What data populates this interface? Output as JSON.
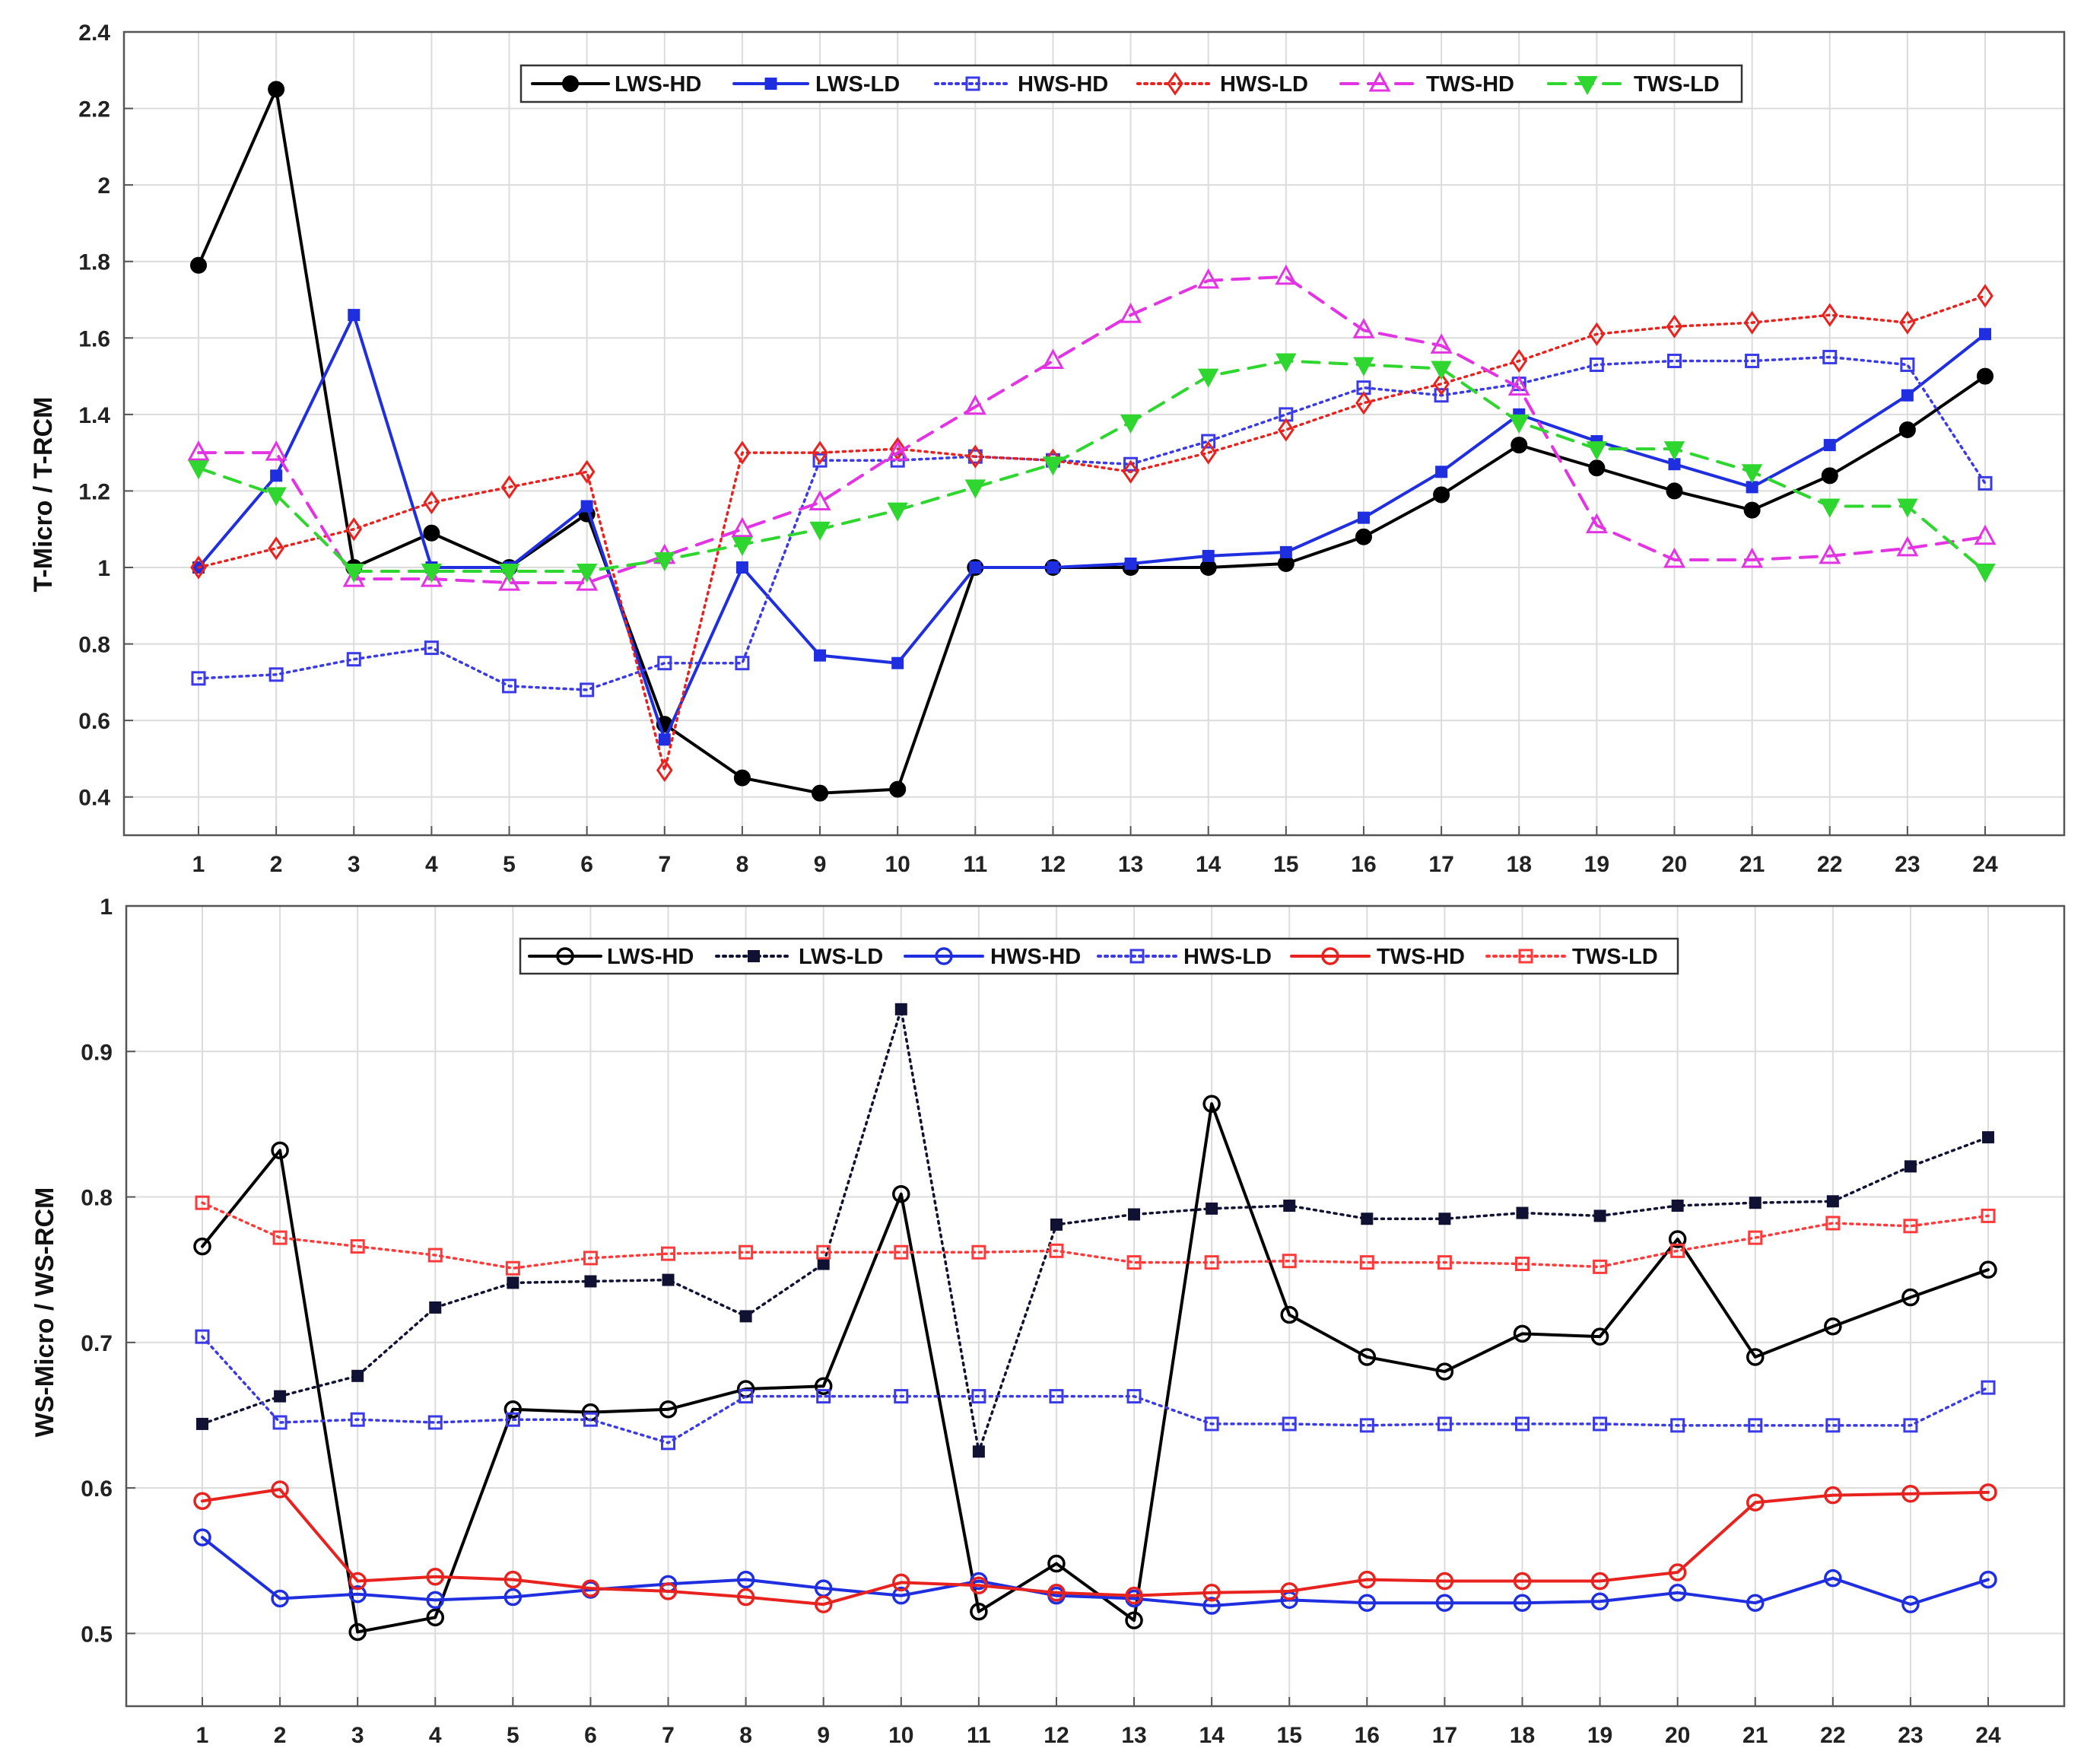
{
  "chart_data": [
    {
      "type": "line",
      "ylabel": "T-Micro / T-RCM",
      "xlabel": "",
      "categories": [
        "1",
        "2",
        "3",
        "4",
        "5",
        "6",
        "7",
        "8",
        "9",
        "10",
        "11",
        "12",
        "13",
        "14",
        "15",
        "16",
        "17",
        "18",
        "19",
        "20",
        "21",
        "22",
        "23",
        "24"
      ],
      "ylim": [
        0.3,
        2.4
      ],
      "yticks": [
        "0.4",
        "0.6",
        "0.8",
        "1",
        "1.2",
        "1.4",
        "1.6",
        "1.8",
        "2",
        "2.2",
        "2.4"
      ],
      "grid": true,
      "legend_position": "top-center",
      "series": [
        {
          "name": "LWS-HD",
          "color": "#000000",
          "style": "solid",
          "marker": "dot",
          "values": [
            1.79,
            2.25,
            1.0,
            1.09,
            1.0,
            1.14,
            0.59,
            0.45,
            0.41,
            0.42,
            1.0,
            1.0,
            1.0,
            1.0,
            1.01,
            1.08,
            1.19,
            1.32,
            1.26,
            1.2,
            1.15,
            1.24,
            1.36,
            1.5
          ]
        },
        {
          "name": "LWS-LD",
          "color": "#1f2fe0",
          "style": "solid",
          "marker": "square",
          "values": [
            1.0,
            1.24,
            1.66,
            1.0,
            1.0,
            1.16,
            0.55,
            1.0,
            0.77,
            0.75,
            1.0,
            1.0,
            1.01,
            1.03,
            1.04,
            1.13,
            1.25,
            1.4,
            1.33,
            1.27,
            1.21,
            1.32,
            1.45,
            1.61
          ]
        },
        {
          "name": "HWS-HD",
          "color": "#3a3ae6",
          "style": "dotted",
          "marker": "open-square",
          "values": [
            0.71,
            0.72,
            0.76,
            0.79,
            0.69,
            0.68,
            0.75,
            0.75,
            1.28,
            1.28,
            1.29,
            1.28,
            1.27,
            1.33,
            1.4,
            1.47,
            1.45,
            1.48,
            1.53,
            1.54,
            1.54,
            1.55,
            1.53,
            1.22
          ]
        },
        {
          "name": "HWS-LD",
          "color": "#e8231f",
          "style": "dotted",
          "marker": "diamond",
          "values": [
            1.0,
            1.05,
            1.1,
            1.17,
            1.21,
            1.25,
            0.47,
            1.3,
            1.3,
            1.31,
            1.29,
            1.28,
            1.25,
            1.3,
            1.36,
            1.43,
            1.48,
            1.54,
            1.61,
            1.63,
            1.64,
            1.66,
            1.64,
            1.71
          ]
        },
        {
          "name": "TWS-HD",
          "color": "#e234e2",
          "style": "dashed",
          "marker": "triangle-up",
          "values": [
            1.3,
            1.3,
            0.97,
            0.97,
            0.96,
            0.96,
            1.03,
            1.1,
            1.17,
            1.3,
            1.42,
            1.54,
            1.66,
            1.75,
            1.76,
            1.62,
            1.58,
            1.47,
            1.11,
            1.02,
            1.02,
            1.03,
            1.05,
            1.08
          ]
        },
        {
          "name": "TWS-LD",
          "color": "#2fd62f",
          "style": "dashed",
          "marker": "triangle-down",
          "values": [
            1.26,
            1.19,
            0.99,
            0.99,
            0.99,
            0.99,
            1.02,
            1.06,
            1.1,
            1.15,
            1.21,
            1.27,
            1.38,
            1.5,
            1.54,
            1.53,
            1.52,
            1.38,
            1.31,
            1.31,
            1.25,
            1.16,
            1.16,
            0.99
          ]
        }
      ]
    },
    {
      "type": "line",
      "ylabel": "WS-Micro / WS-RCM",
      "xlabel": "",
      "categories": [
        "1",
        "2",
        "3",
        "4",
        "5",
        "6",
        "7",
        "8",
        "9",
        "10",
        "11",
        "12",
        "13",
        "14",
        "15",
        "16",
        "17",
        "18",
        "19",
        "20",
        "21",
        "22",
        "23",
        "24"
      ],
      "ylim": [
        0.45,
        1.0
      ],
      "yticks": [
        "0.5",
        "0.6",
        "0.7",
        "0.8",
        "0.9",
        "1"
      ],
      "grid": true,
      "legend_position": "top-center",
      "series": [
        {
          "name": "LWS-HD",
          "color": "#000000",
          "style": "solid",
          "marker": "open-circle",
          "values": [
            0.766,
            0.832,
            0.501,
            0.511,
            0.654,
            0.652,
            0.654,
            0.668,
            0.67,
            0.802,
            0.515,
            0.548,
            0.509,
            0.864,
            0.719,
            0.69,
            0.68,
            0.706,
            0.704,
            0.771,
            0.69,
            0.711,
            0.731,
            0.75
          ]
        },
        {
          "name": "LWS-LD",
          "color": "#111133",
          "style": "dotted",
          "marker": "square",
          "values": [
            0.644,
            0.663,
            0.677,
            0.724,
            0.741,
            0.742,
            0.743,
            0.718,
            0.754,
            0.929,
            0.625,
            0.781,
            0.788,
            0.792,
            0.794,
            0.785,
            0.785,
            0.789,
            0.787,
            0.794,
            0.796,
            0.797,
            0.821,
            0.841
          ]
        },
        {
          "name": "HWS-HD",
          "color": "#1f2fe0",
          "style": "solid",
          "marker": "open-circle",
          "values": [
            0.566,
            0.524,
            0.527,
            0.523,
            0.525,
            0.53,
            0.534,
            0.537,
            0.531,
            0.526,
            0.536,
            0.526,
            0.524,
            0.519,
            0.523,
            0.521,
            0.521,
            0.521,
            0.522,
            0.528,
            0.521,
            0.538,
            0.52,
            0.537
          ]
        },
        {
          "name": "HWS-LD",
          "color": "#3a3ae6",
          "style": "dotted",
          "marker": "open-square",
          "values": [
            0.704,
            0.645,
            0.647,
            0.645,
            0.647,
            0.647,
            0.631,
            0.663,
            0.663,
            0.663,
            0.663,
            0.663,
            0.663,
            0.644,
            0.644,
            0.643,
            0.644,
            0.644,
            0.644,
            0.643,
            0.643,
            0.643,
            0.643,
            0.669
          ]
        },
        {
          "name": "TWS-HD",
          "color": "#e8231f",
          "style": "solid",
          "marker": "open-circle",
          "values": [
            0.591,
            0.599,
            0.536,
            0.539,
            0.537,
            0.531,
            0.529,
            0.525,
            0.52,
            0.535,
            0.533,
            0.528,
            0.526,
            0.528,
            0.529,
            0.537,
            0.536,
            0.536,
            0.536,
            0.542,
            0.59,
            0.595,
            0.596,
            0.597
          ]
        },
        {
          "name": "TWS-LD",
          "color": "#ff3a3a",
          "style": "dotted",
          "marker": "open-square",
          "values": [
            0.796,
            0.772,
            0.766,
            0.76,
            0.751,
            0.758,
            0.761,
            0.762,
            0.762,
            0.762,
            0.762,
            0.763,
            0.755,
            0.755,
            0.756,
            0.755,
            0.755,
            0.754,
            0.752,
            0.763,
            0.772,
            0.782,
            0.78,
            0.787
          ]
        }
      ]
    }
  ]
}
